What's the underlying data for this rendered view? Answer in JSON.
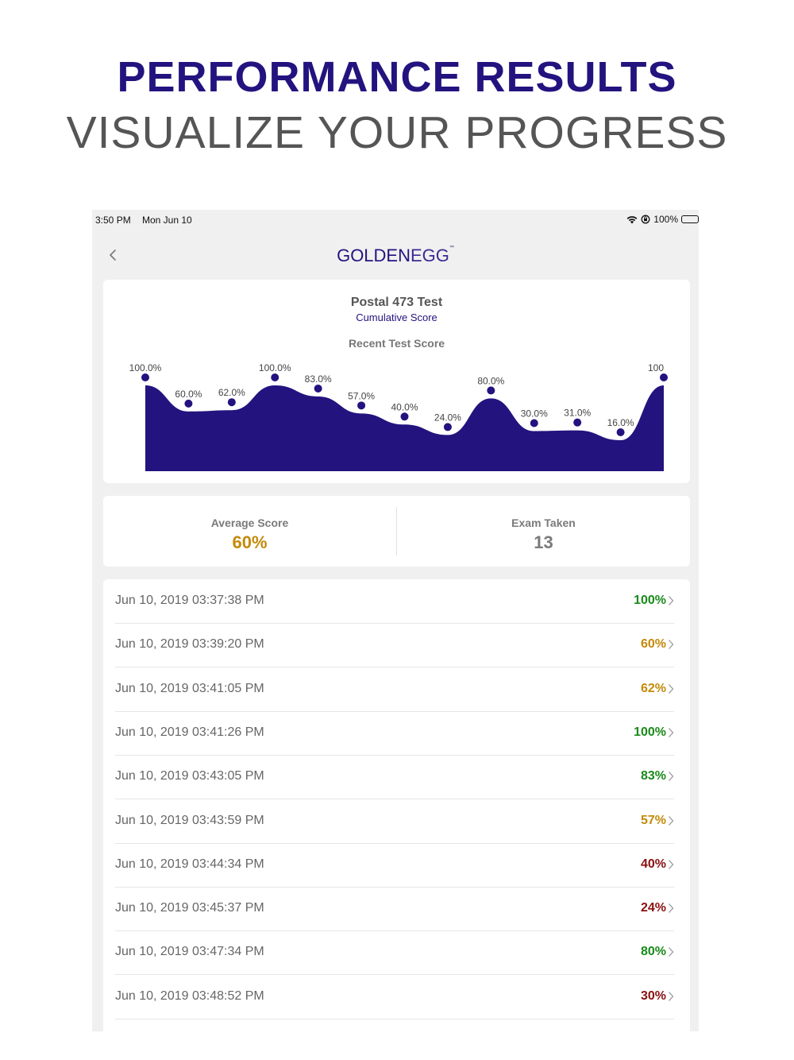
{
  "headline": {
    "title": "PERFORMANCE RESULTS",
    "subtitle": "VISUALIZE YOUR PROGRESS"
  },
  "status_bar": {
    "time": "3:50 PM",
    "date": "Mon Jun 10",
    "battery": "100%",
    "icons": [
      "wifi-icon",
      "rotation-lock-icon",
      "battery-icon"
    ]
  },
  "nav": {
    "back_icon": "chevron-left-icon",
    "logo_part1": "GOLDEN",
    "logo_part2": "EGG",
    "logo_mark": "™"
  },
  "chart_card": {
    "title": "Postal 473 Test",
    "subtitle": "Cumulative Score",
    "heading": "Recent Test Score"
  },
  "chart_data": {
    "type": "area",
    "title": "Recent Test Score",
    "values": [
      100,
      60,
      62,
      100,
      83,
      57,
      40,
      24,
      80,
      30,
      31,
      16,
      100
    ],
    "labels": [
      "100.0%",
      "60.0%",
      "62.0%",
      "100.0%",
      "83.0%",
      "57.0%",
      "40.0%",
      "24.0%",
      "80.0%",
      "30.0%",
      "31.0%",
      "16.0%",
      "100"
    ],
    "ylim": [
      0,
      100
    ],
    "fill_color": "#23137f",
    "point_color": "#23137f",
    "grid": false
  },
  "stats": {
    "average_label": "Average Score",
    "average_value": "60%",
    "average_color": "#c48a0a",
    "exam_label": "Exam Taken",
    "exam_value": "13"
  },
  "colors": {
    "high": "#1a8a1a",
    "mid": "#c48a0a",
    "low": "#8b1010",
    "brand": "#23137f"
  },
  "results": [
    {
      "date": "Jun 10, 2019 03:37:38 PM",
      "score": "100%",
      "level": "high"
    },
    {
      "date": "Jun 10, 2019 03:39:20 PM",
      "score": "60%",
      "level": "mid"
    },
    {
      "date": "Jun 10, 2019 03:41:05 PM",
      "score": "62%",
      "level": "mid"
    },
    {
      "date": "Jun 10, 2019 03:41:26 PM",
      "score": "100%",
      "level": "high"
    },
    {
      "date": "Jun 10, 2019 03:43:05 PM",
      "score": "83%",
      "level": "high"
    },
    {
      "date": "Jun 10, 2019 03:43:59 PM",
      "score": "57%",
      "level": "mid"
    },
    {
      "date": "Jun 10, 2019 03:44:34 PM",
      "score": "40%",
      "level": "low"
    },
    {
      "date": "Jun 10, 2019 03:45:37 PM",
      "score": "24%",
      "level": "low"
    },
    {
      "date": "Jun 10, 2019 03:47:34 PM",
      "score": "80%",
      "level": "high"
    },
    {
      "date": "Jun 10, 2019 03:48:52 PM",
      "score": "30%",
      "level": "low"
    }
  ]
}
